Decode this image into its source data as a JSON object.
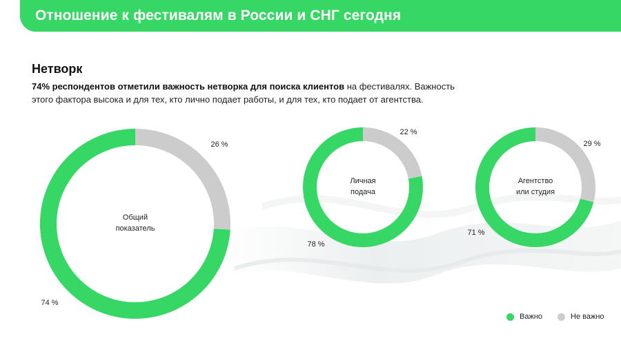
{
  "header": {
    "title": "Отношение к фестивалям в России и СНГ сегодня"
  },
  "section": {
    "title": "Нетворк",
    "desc_bold": "74% респондентов отметили важность нетворка для поиска клиентов",
    "desc_rest_line1": " на фестивалях. Важность",
    "desc_line2": "этого фактора высока и для тех, кто лично подает работы, и для тех, кто подает от агентства."
  },
  "colors": {
    "important": "#36d765",
    "not_important": "#cccccc",
    "banner": "#36d765"
  },
  "chart_data": [
    {
      "type": "pie",
      "center_label": [
        "Общий",
        "показатель"
      ],
      "categories": [
        "Важно",
        "Не важно"
      ],
      "values": [
        74,
        26
      ],
      "value_labels": [
        "74 %",
        "26 %"
      ]
    },
    {
      "type": "pie",
      "center_label": [
        "Личная",
        "подача"
      ],
      "categories": [
        "Важно",
        "Не важно"
      ],
      "values": [
        78,
        22
      ],
      "value_labels": [
        "78 %",
        "22 %"
      ]
    },
    {
      "type": "pie",
      "center_label": [
        "Агентство",
        "или студия"
      ],
      "categories": [
        "Важно",
        "Не важно"
      ],
      "values": [
        71,
        29
      ],
      "value_labels": [
        "71 %",
        "29 %"
      ]
    }
  ],
  "legend": {
    "important": "Важно",
    "not_important": "Не важно"
  }
}
